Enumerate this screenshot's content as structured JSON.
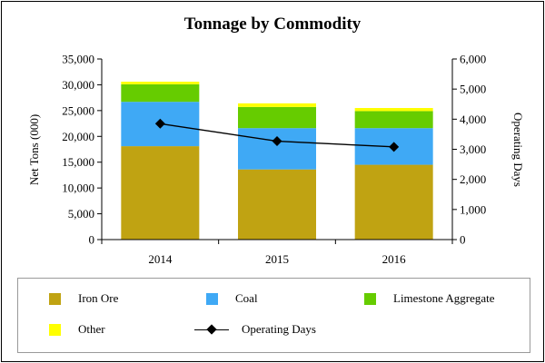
{
  "chart_data": {
    "type": "bar",
    "stacked": true,
    "title": "Tonnage by Commodity",
    "categories": [
      "2014",
      "2015",
      "2016"
    ],
    "ylabel": "Net Tons (000)",
    "y2label": "Operating Days",
    "ylim": [
      0,
      35000
    ],
    "y2lim": [
      0,
      6000
    ],
    "yticks": [
      "0",
      "5,000",
      "10,000",
      "15,000",
      "20,000",
      "25,000",
      "30,000",
      "35,000"
    ],
    "y2ticks": [
      "0",
      "1,000",
      "2,000",
      "3,000",
      "4,000",
      "5,000",
      "6,000"
    ],
    "series": [
      {
        "name": "Iron Ore",
        "color": "#C0A312",
        "values": [
          18100,
          13600,
          14500
        ]
      },
      {
        "name": "Coal",
        "color": "#3FA9F5",
        "values": [
          8600,
          8000,
          7100
        ]
      },
      {
        "name": "Limestone Aggregate",
        "color": "#66CC00",
        "values": [
          3400,
          4100,
          3300
        ]
      },
      {
        "name": "Other",
        "color": "#FFFF00",
        "values": [
          500,
          700,
          600
        ]
      }
    ],
    "line_series": {
      "name": "Operating Days",
      "color": "#000000",
      "axis": "right",
      "values": [
        3850,
        3270,
        3080
      ]
    }
  }
}
